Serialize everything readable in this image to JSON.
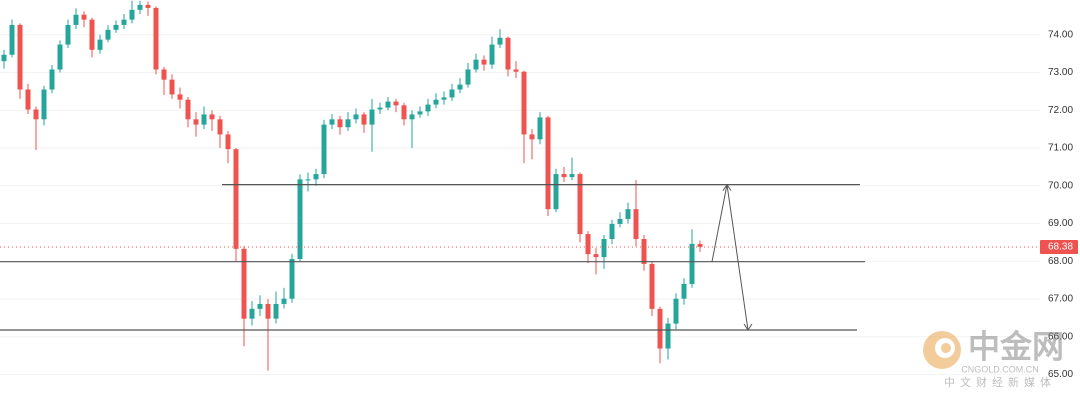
{
  "chart_data": {
    "type": "candlestick",
    "open": [
      73.3,
      73.47,
      74.26,
      72.55,
      72.02,
      71.76,
      72.55,
      73.08,
      73.74,
      74.26,
      74.53,
      74.4,
      73.6,
      73.87,
      74.13,
      74.26,
      74.4,
      74.66,
      74.79,
      74.71,
      73.08,
      72.81,
      72.42,
      72.28,
      71.76,
      71.62,
      71.89,
      71.76,
      71.36,
      70.97,
      68.33,
      66.48,
      66.74,
      66.87,
      66.48,
      66.87,
      67.01,
      68.06,
      70.17,
      70.17,
      70.31,
      71.62,
      71.76,
      71.55,
      71.76,
      71.89,
      71.62,
      72.02,
      72.07,
      72.23,
      72.13,
      71.76,
      71.89,
      71.97,
      72.15,
      72.28,
      72.34,
      72.55,
      72.68,
      73.08,
      73.34,
      73.21,
      73.74,
      73.92,
      73.08,
      73.02,
      71.36,
      71.23,
      71.81,
      69.38,
      70.31,
      70.23,
      70.31,
      68.72,
      68.19,
      68.11,
      68.59,
      68.99,
      69.12,
      69.38,
      68.59,
      67.93,
      66.74,
      65.69,
      66.35,
      67.01,
      67.4,
      68.46
    ],
    "high": [
      73.6,
      74.4,
      74.3,
      72.7,
      72.1,
      72.65,
      73.2,
      73.85,
      74.4,
      74.7,
      74.62,
      74.45,
      74.0,
      74.25,
      74.38,
      74.55,
      74.9,
      74.9,
      74.88,
      74.75,
      73.15,
      72.95,
      72.6,
      72.35,
      71.95,
      72.1,
      72.0,
      71.85,
      71.45,
      71.0,
      68.4,
      66.95,
      67.1,
      67.0,
      67.2,
      67.3,
      68.2,
      70.3,
      70.35,
      70.45,
      71.75,
      71.9,
      71.85,
      71.95,
      72.05,
      71.95,
      72.3,
      72.2,
      72.35,
      72.3,
      72.2,
      72.0,
      72.1,
      72.3,
      72.45,
      72.5,
      72.7,
      72.85,
      73.25,
      73.5,
      73.45,
      73.95,
      74.15,
      73.95,
      73.3,
      73.05,
      71.5,
      71.95,
      71.85,
      70.45,
      70.5,
      70.75,
      70.35,
      68.8,
      68.35,
      68.7,
      69.1,
      69.3,
      69.55,
      70.15,
      68.7,
      68.0,
      66.8,
      66.5,
      67.15,
      67.55,
      68.85,
      68.55
    ],
    "low": [
      73.1,
      73.4,
      72.3,
      71.9,
      70.95,
      71.6,
      72.45,
      73.0,
      73.65,
      74.15,
      74.2,
      73.4,
      73.5,
      73.8,
      74.05,
      74.15,
      74.3,
      74.55,
      74.5,
      72.95,
      72.4,
      72.3,
      72.05,
      71.55,
      71.3,
      71.5,
      71.45,
      71.0,
      70.6,
      68.0,
      65.75,
      66.3,
      66.55,
      65.1,
      66.35,
      66.75,
      66.9,
      68.0,
      69.85,
      70.0,
      70.2,
      71.5,
      71.35,
      71.45,
      71.65,
      71.4,
      70.9,
      71.9,
      72.0,
      71.95,
      71.6,
      71.0,
      71.8,
      71.85,
      72.05,
      72.15,
      72.25,
      72.45,
      72.6,
      73.0,
      73.05,
      73.1,
      73.65,
      72.9,
      72.85,
      70.6,
      70.7,
      71.1,
      69.2,
      69.3,
      70.1,
      70.15,
      68.5,
      67.95,
      67.65,
      67.8,
      68.45,
      68.9,
      69.0,
      68.4,
      67.75,
      66.55,
      65.3,
      65.4,
      66.2,
      66.85,
      67.3,
      68.25
    ],
    "close": [
      73.47,
      74.26,
      72.55,
      72.02,
      71.76,
      72.55,
      73.08,
      73.74,
      74.26,
      74.53,
      74.4,
      73.6,
      73.87,
      74.13,
      74.26,
      74.4,
      74.66,
      74.79,
      74.71,
      73.08,
      72.81,
      72.42,
      72.28,
      71.76,
      71.62,
      71.89,
      71.76,
      71.36,
      70.97,
      68.33,
      66.48,
      66.74,
      66.87,
      66.48,
      66.87,
      67.01,
      68.06,
      70.17,
      70.17,
      70.31,
      71.62,
      71.76,
      71.55,
      71.76,
      71.89,
      71.62,
      72.02,
      72.07,
      72.23,
      72.13,
      71.76,
      71.89,
      71.97,
      72.15,
      72.28,
      72.34,
      72.55,
      72.68,
      73.08,
      73.34,
      73.21,
      73.74,
      73.92,
      73.08,
      73.02,
      71.36,
      71.23,
      71.81,
      69.38,
      70.31,
      70.23,
      70.31,
      68.72,
      68.19,
      68.11,
      68.59,
      68.99,
      69.12,
      69.38,
      68.59,
      67.93,
      66.74,
      65.69,
      66.35,
      67.01,
      67.4,
      68.46,
      68.38
    ],
    "up_color": "#26a69a",
    "down_color": "#ef5350",
    "last_price_label": "68.38",
    "levels": [
      70.03,
      67.99,
      66.18
    ],
    "arrow": [
      67.99,
      70.03,
      66.18
    ],
    "ylim": [
      64.3,
      74.92
    ],
    "yticks": [
      {
        "value": 74,
        "label": "74.00"
      },
      {
        "value": 73,
        "label": "73.00"
      },
      {
        "value": 72,
        "label": "72.00"
      },
      {
        "value": 71,
        "label": "71.00"
      },
      {
        "value": 70,
        "label": "70.00"
      },
      {
        "value": 69,
        "label": "69.00"
      },
      {
        "value": 68,
        "label": "68.00"
      },
      {
        "value": 67,
        "label": "67.00"
      },
      {
        "value": 66,
        "label": "66.00"
      },
      {
        "value": 65,
        "label": "65.00"
      }
    ],
    "grid": true
  },
  "watermark": {
    "brand": "中金网",
    "domain": "CNGOLD.COM.CN",
    "slogan": "中文财经新媒体"
  }
}
